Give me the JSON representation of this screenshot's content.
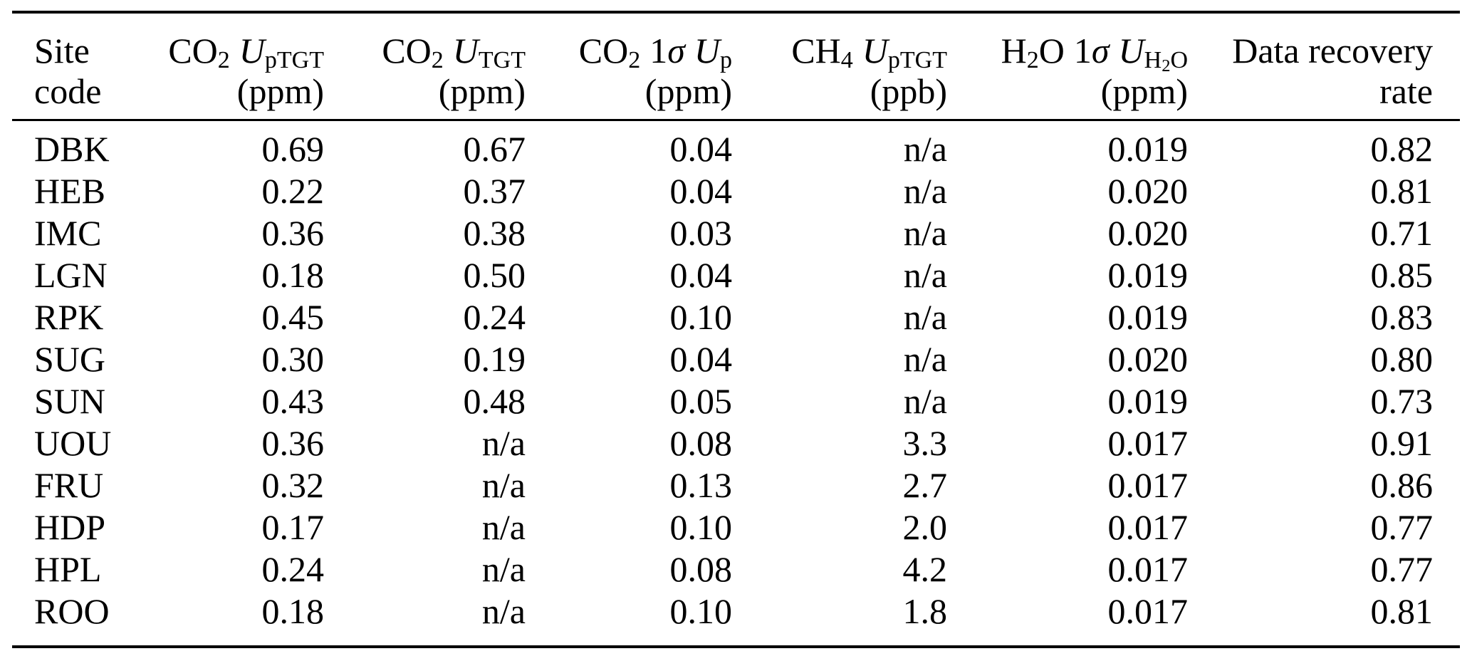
{
  "colors": {
    "background": "#ffffff",
    "text": "#000000",
    "rule": "#000000"
  },
  "table": {
    "header": {
      "site": {
        "line1": "Site",
        "line2": "code"
      },
      "co2_uptgt": {
        "species": "CO",
        "species_sub": "2",
        "symbol": "U",
        "symbol_sub": "pTGT",
        "unit": "(ppm)"
      },
      "co2_utgt": {
        "species": "CO",
        "species_sub": "2",
        "symbol": "U",
        "symbol_sub": "TGT",
        "unit": "(ppm)"
      },
      "co2_up": {
        "species": "CO",
        "species_sub": "2",
        "sigma_num": "1",
        "sigma_char": "σ",
        "symbol": "U",
        "symbol_sub": "p",
        "unit": "(ppm)"
      },
      "ch4_uptgt": {
        "species": "CH",
        "species_sub": "4",
        "symbol": "U",
        "symbol_sub": "pTGT",
        "unit": "(ppb)"
      },
      "h2o_uh2o": {
        "species": "H",
        "species_sub": "2",
        "species_tail": "O",
        "sigma_num": "1",
        "sigma_char": "σ",
        "symbol": "U",
        "symbol_sub_a": "H",
        "symbol_sub_b": "2",
        "symbol_sub_c": "O",
        "unit": "(ppm)"
      },
      "recovery": {
        "line1": "Data recovery",
        "line2": "rate"
      }
    },
    "rows": [
      {
        "cells": [
          "DBK",
          "0.69",
          "0.67",
          "0.04",
          "n/a",
          "0.019",
          "0.82"
        ]
      },
      {
        "cells": [
          "HEB",
          "0.22",
          "0.37",
          "0.04",
          "n/a",
          "0.020",
          "0.81"
        ]
      },
      {
        "cells": [
          "IMC",
          "0.36",
          "0.38",
          "0.03",
          "n/a",
          "0.020",
          "0.71"
        ]
      },
      {
        "cells": [
          "LGN",
          "0.18",
          "0.50",
          "0.04",
          "n/a",
          "0.019",
          "0.85"
        ]
      },
      {
        "cells": [
          "RPK",
          "0.45",
          "0.24",
          "0.10",
          "n/a",
          "0.019",
          "0.83"
        ]
      },
      {
        "cells": [
          "SUG",
          "0.30",
          "0.19",
          "0.04",
          "n/a",
          "0.020",
          "0.80"
        ]
      },
      {
        "cells": [
          "SUN",
          "0.43",
          "0.48",
          "0.05",
          "n/a",
          "0.019",
          "0.73"
        ]
      },
      {
        "cells": [
          "UOU",
          "0.36",
          "n/a",
          "0.08",
          "3.3",
          "0.017",
          "0.91"
        ]
      },
      {
        "cells": [
          "FRU",
          "0.32",
          "n/a",
          "0.13",
          "2.7",
          "0.017",
          "0.86"
        ]
      },
      {
        "cells": [
          "HDP",
          "0.17",
          "n/a",
          "0.10",
          "2.0",
          "0.017",
          "0.77"
        ]
      },
      {
        "cells": [
          "HPL",
          "0.24",
          "n/a",
          "0.08",
          "4.2",
          "0.017",
          "0.77"
        ]
      },
      {
        "cells": [
          "ROO",
          "0.18",
          "n/a",
          "0.10",
          "1.8",
          "0.017",
          "0.81"
        ]
      }
    ]
  }
}
